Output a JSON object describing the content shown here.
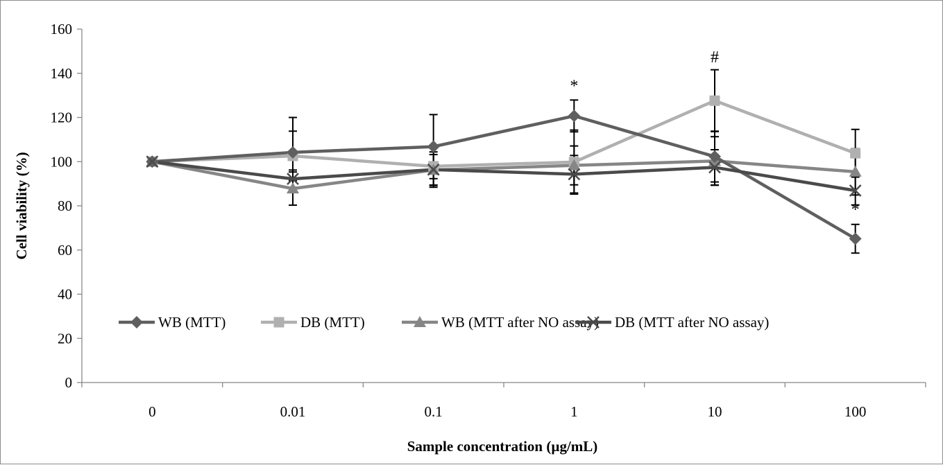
{
  "chart_data": {
    "type": "line",
    "title": "",
    "xlabel": "Sample concentration (µg/mL)",
    "ylabel": "Cell viability (%)",
    "categories": [
      "0",
      "0.01",
      "0.1",
      "1",
      "10",
      "100"
    ],
    "ylim": [
      0,
      160
    ],
    "yticks": [
      0,
      20,
      40,
      60,
      80,
      100,
      120,
      140,
      160
    ],
    "grid": false,
    "legend_position": "inside-bottom",
    "series": [
      {
        "name": "WB (MTT)",
        "color": "#5f5f5f",
        "marker": "diamond",
        "values": [
          100,
          104.2,
          106.8,
          120.7,
          102.3,
          65.1
        ],
        "errors": [
          0,
          15.8,
          14.5,
          7.2,
          11.5,
          6.5
        ]
      },
      {
        "name": "DB (MTT)",
        "color": "#b0b0b0",
        "marker": "square",
        "values": [
          100,
          102.6,
          97.9,
          99.8,
          127.6,
          103.8
        ],
        "errors": [
          0,
          11.2,
          8.5,
          14.5,
          14.0,
          10.8
        ]
      },
      {
        "name": "WB (MTT after NO assay)",
        "color": "#868686",
        "marker": "triangle",
        "values": [
          100,
          87.8,
          96.2,
          98.3,
          100.3,
          95.4
        ],
        "errors": [
          0,
          7.5,
          7.0,
          8.8,
          11.0,
          10.5
        ]
      },
      {
        "name": "DB (MTT after NO assay)",
        "color": "#4a4a4a",
        "marker": "x",
        "values": [
          100,
          92.2,
          96.4,
          94.3,
          97.4,
          86.9
        ],
        "errors": [
          0,
          4.0,
          8.0,
          8.5,
          8.0,
          6.5
        ]
      }
    ],
    "annotations": [
      {
        "text": "*",
        "category": "1",
        "y": 132
      },
      {
        "text": "#",
        "category": "10",
        "y": 145
      },
      {
        "text": "*",
        "category": "100",
        "y": 76
      }
    ]
  }
}
